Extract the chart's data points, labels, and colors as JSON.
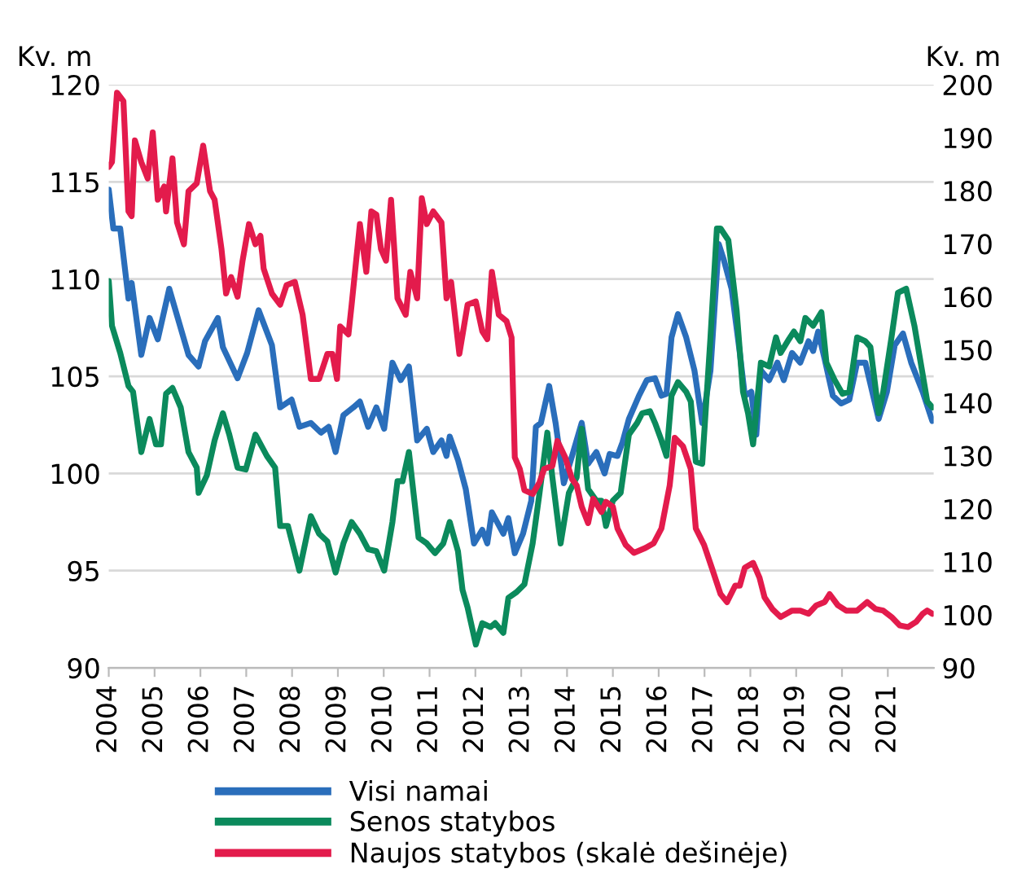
{
  "chart_data": {
    "type": "line",
    "ylabel": "Kv. m",
    "y2label": "Kv. m",
    "xlim": [
      2004,
      2022
    ],
    "xticks": [
      2004,
      2005,
      2006,
      2007,
      2008,
      2009,
      2010,
      2011,
      2012,
      2013,
      2014,
      2015,
      2016,
      2017,
      2018,
      2019,
      2020,
      2021
    ],
    "ylim": [
      90,
      120
    ],
    "yticks": [
      90,
      95,
      100,
      105,
      110,
      115,
      120
    ],
    "y2lim": [
      90,
      200
    ],
    "y2ticks": [
      90,
      100,
      110,
      120,
      130,
      140,
      150,
      160,
      170,
      180,
      190,
      200
    ],
    "grid": "y",
    "legend": "bottom",
    "marker": "none",
    "line_style": "solid",
    "series": [
      {
        "name": "Visi namai",
        "color": "#2a6ebb",
        "x": [
          2004.0,
          2004.1,
          2004.25,
          2004.43,
          2004.5,
          2004.71,
          2004.89,
          2005.07,
          2005.32,
          2005.74,
          2005.96,
          2006.1,
          2006.38,
          2006.49,
          2006.81,
          2007.02,
          2007.27,
          2007.56,
          2007.74,
          2007.99,
          2008.16,
          2008.41,
          2008.63,
          2008.8,
          2008.95,
          2009.12,
          2009.34,
          2009.48,
          2009.66,
          2009.84,
          2010.01,
          2010.19,
          2010.37,
          2010.55,
          2010.73,
          2010.94,
          2011.08,
          2011.26,
          2011.37,
          2011.44,
          2011.62,
          2011.79,
          2011.97,
          2012.15,
          2012.26,
          2012.36,
          2012.61,
          2012.72,
          2012.86,
          2013.04,
          2013.22,
          2013.32,
          2013.43,
          2013.61,
          2013.75,
          2013.93,
          2014.11,
          2014.32,
          2014.46,
          2014.64,
          2014.82,
          2014.93,
          2015.1,
          2015.21,
          2015.35,
          2015.57,
          2015.74,
          2015.92,
          2016.06,
          2016.17,
          2016.28,
          2016.42,
          2016.6,
          2016.78,
          2016.95,
          2017.13,
          2017.31,
          2017.42,
          2017.59,
          2017.77,
          2017.88,
          2018.02,
          2018.13,
          2018.23,
          2018.41,
          2018.59,
          2018.73,
          2018.91,
          2019.09,
          2019.27,
          2019.37,
          2019.48,
          2019.62,
          2019.8,
          2019.98,
          2020.16,
          2020.33,
          2020.51,
          2020.8,
          2020.98,
          2021.15,
          2021.33,
          2021.51,
          2021.76,
          2021.97
        ],
        "values": [
          114.6,
          112.6,
          112.6,
          109.0,
          109.8,
          106.1,
          108.0,
          106.9,
          109.5,
          106.1,
          105.5,
          106.8,
          108.0,
          106.5,
          104.9,
          106.2,
          108.4,
          106.6,
          103.4,
          103.8,
          102.4,
          102.6,
          102.1,
          102.4,
          101.1,
          103.0,
          103.4,
          103.7,
          102.4,
          103.4,
          102.3,
          105.7,
          104.8,
          105.5,
          101.7,
          102.3,
          101.1,
          101.7,
          100.9,
          101.9,
          100.7,
          99.2,
          96.4,
          97.1,
          96.4,
          98.0,
          96.9,
          97.7,
          95.9,
          96.9,
          98.6,
          102.4,
          102.6,
          104.5,
          102.6,
          99.5,
          100.9,
          102.6,
          100.5,
          101.1,
          100.0,
          101.0,
          100.9,
          101.6,
          102.8,
          104.0,
          104.8,
          104.9,
          104.0,
          104.1,
          107.0,
          108.2,
          107.0,
          105.3,
          102.6,
          105.3,
          111.8,
          111.0,
          109.5,
          106.2,
          104.0,
          104.2,
          102.0,
          105.3,
          104.8,
          105.7,
          104.8,
          106.2,
          105.7,
          106.8,
          106.3,
          107.3,
          105.9,
          104.0,
          103.6,
          103.8,
          105.7,
          105.7,
          102.8,
          104.2,
          106.6,
          107.2,
          105.7,
          104.2,
          102.7
        ]
      },
      {
        "name": "Senos statybos",
        "color": "#0b8a5c",
        "x": [
          2004.0,
          2004.07,
          2004.25,
          2004.43,
          2004.53,
          2004.71,
          2004.89,
          2005.03,
          2005.14,
          2005.25,
          2005.39,
          2005.57,
          2005.74,
          2005.92,
          2005.96,
          2006.14,
          2006.31,
          2006.49,
          2006.63,
          2006.81,
          2006.99,
          2007.2,
          2007.45,
          2007.63,
          2007.74,
          2007.91,
          2008.16,
          2008.41,
          2008.59,
          2008.77,
          2008.95,
          2009.12,
          2009.3,
          2009.48,
          2009.66,
          2009.84,
          2010.01,
          2010.19,
          2010.3,
          2010.41,
          2010.55,
          2010.65,
          2010.76,
          2010.94,
          2011.12,
          2011.3,
          2011.44,
          2011.62,
          2011.72,
          2011.83,
          2012.01,
          2012.15,
          2012.33,
          2012.43,
          2012.61,
          2012.72,
          2012.9,
          2013.07,
          2013.25,
          2013.4,
          2013.57,
          2013.68,
          2013.86,
          2014.04,
          2014.21,
          2014.32,
          2014.46,
          2014.64,
          2014.75,
          2014.85,
          2015.0,
          2015.17,
          2015.35,
          2015.53,
          2015.64,
          2015.81,
          2015.92,
          2016.06,
          2016.17,
          2016.28,
          2016.42,
          2016.6,
          2016.7,
          2016.81,
          2016.95,
          2017.13,
          2017.27,
          2017.35,
          2017.52,
          2017.7,
          2017.84,
          2017.95,
          2018.06,
          2018.23,
          2018.41,
          2018.56,
          2018.66,
          2018.84,
          2018.95,
          2019.09,
          2019.2,
          2019.37,
          2019.55,
          2019.66,
          2019.84,
          2020.01,
          2020.16,
          2020.33,
          2020.51,
          2020.62,
          2020.8,
          2020.9,
          2021.08,
          2021.22,
          2021.4,
          2021.58,
          2021.76,
          2021.86,
          2021.97
        ],
        "values": [
          109.9,
          107.6,
          106.2,
          104.5,
          104.2,
          101.1,
          102.8,
          101.5,
          101.5,
          104.1,
          104.4,
          103.4,
          101.1,
          100.3,
          99.0,
          99.9,
          101.7,
          103.1,
          102.0,
          100.3,
          100.2,
          102.0,
          100.9,
          100.3,
          97.3,
          97.3,
          95.0,
          97.8,
          96.9,
          96.5,
          94.9,
          96.4,
          97.5,
          96.9,
          96.1,
          96.0,
          95.0,
          97.5,
          99.6,
          99.6,
          101.1,
          99.0,
          96.7,
          96.4,
          95.9,
          96.4,
          97.5,
          96.0,
          94.0,
          93.1,
          91.2,
          92.3,
          92.1,
          92.3,
          91.8,
          93.6,
          93.9,
          94.3,
          96.4,
          99.0,
          102.1,
          99.8,
          96.4,
          99.0,
          99.8,
          102.3,
          99.2,
          98.6,
          98.6,
          97.3,
          98.6,
          99.0,
          102.0,
          102.6,
          103.1,
          103.2,
          102.6,
          101.7,
          100.9,
          104.0,
          104.7,
          104.2,
          103.7,
          100.6,
          100.5,
          107.0,
          112.6,
          112.6,
          112.0,
          108.4,
          104.2,
          103.1,
          101.5,
          105.7,
          105.5,
          107.0,
          106.2,
          106.9,
          107.3,
          106.8,
          108.0,
          107.6,
          108.3,
          105.7,
          104.8,
          104.1,
          104.2,
          107.0,
          106.8,
          106.5,
          103.1,
          104.2,
          107.0,
          109.3,
          109.5,
          107.6,
          105.1,
          103.7,
          103.4
        ]
      },
      {
        "name": "Naujos statybos (skalė dešinėje)",
        "color": "#e31b4c",
        "axis": "y2",
        "x": [
          2004.0,
          2004.07,
          2004.18,
          2004.32,
          2004.43,
          2004.5,
          2004.57,
          2004.71,
          2004.85,
          2004.96,
          2005.07,
          2005.21,
          2005.25,
          2005.39,
          2005.49,
          2005.64,
          2005.74,
          2005.92,
          2006.06,
          2006.21,
          2006.31,
          2006.46,
          2006.56,
          2006.67,
          2006.81,
          2006.92,
          2007.06,
          2007.2,
          2007.31,
          2007.38,
          2007.56,
          2007.74,
          2007.88,
          2008.06,
          2008.23,
          2008.41,
          2008.59,
          2008.77,
          2008.88,
          2008.98,
          2009.05,
          2009.23,
          2009.3,
          2009.48,
          2009.62,
          2009.73,
          2009.84,
          2009.94,
          2010.05,
          2010.16,
          2010.3,
          2010.48,
          2010.58,
          2010.73,
          2010.83,
          2010.94,
          2011.08,
          2011.26,
          2011.37,
          2011.47,
          2011.65,
          2011.83,
          2012.01,
          2012.15,
          2012.26,
          2012.36,
          2012.51,
          2012.68,
          2012.79,
          2012.86,
          2012.97,
          2013.07,
          2013.25,
          2013.4,
          2013.5,
          2013.68,
          2013.79,
          2013.96,
          2014.11,
          2014.21,
          2014.32,
          2014.46,
          2014.57,
          2014.75,
          2014.85,
          2015.0,
          2015.1,
          2015.28,
          2015.46,
          2015.71,
          2015.89,
          2016.06,
          2016.24,
          2016.35,
          2016.53,
          2016.7,
          2016.81,
          2016.99,
          2017.17,
          2017.35,
          2017.49,
          2017.67,
          2017.77,
          2017.88,
          2018.06,
          2018.2,
          2018.31,
          2018.48,
          2018.66,
          2018.91,
          2019.09,
          2019.27,
          2019.44,
          2019.62,
          2019.73,
          2019.91,
          2020.09,
          2020.33,
          2020.55,
          2020.73,
          2020.9,
          2021.08,
          2021.26,
          2021.44,
          2021.62,
          2021.76,
          2021.86,
          2021.97
        ],
        "values": [
          184.5,
          185.4,
          198.5,
          196.9,
          176.1,
          175.2,
          189.5,
          185.4,
          182.3,
          191.0,
          178.3,
          180.8,
          176.1,
          186.1,
          174.0,
          169.9,
          179.9,
          181.4,
          188.5,
          179.9,
          178.3,
          169.0,
          160.6,
          163.7,
          160.0,
          166.8,
          173.7,
          169.9,
          171.5,
          165.3,
          160.6,
          158.5,
          162.2,
          162.8,
          156.6,
          144.5,
          144.5,
          149.2,
          149.2,
          144.5,
          154.4,
          152.9,
          158.5,
          173.7,
          164.7,
          176.1,
          175.5,
          169.0,
          166.8,
          178.3,
          159.7,
          156.6,
          164.7,
          159.7,
          178.6,
          173.7,
          176.1,
          174.0,
          159.7,
          162.8,
          149.2,
          158.5,
          159.1,
          153.5,
          152.0,
          164.7,
          156.6,
          155.4,
          152.3,
          129.7,
          127.5,
          123.5,
          122.8,
          125.0,
          127.5,
          128.1,
          132.8,
          129.7,
          125.6,
          124.4,
          120.4,
          117.3,
          121.9,
          119.4,
          121.3,
          120.4,
          116.3,
          113.2,
          111.7,
          112.6,
          113.5,
          116.3,
          124.4,
          133.4,
          131.8,
          127.5,
          116.3,
          113.2,
          108.6,
          103.9,
          102.4,
          105.5,
          105.5,
          108.9,
          109.8,
          107.0,
          103.3,
          101.1,
          99.6,
          100.8,
          100.8,
          100.2,
          101.8,
          102.4,
          103.9,
          101.8,
          100.8,
          100.8,
          102.4,
          101.1,
          100.8,
          99.6,
          98.0,
          97.7,
          98.7,
          100.2,
          100.8,
          100.2
        ]
      }
    ]
  }
}
